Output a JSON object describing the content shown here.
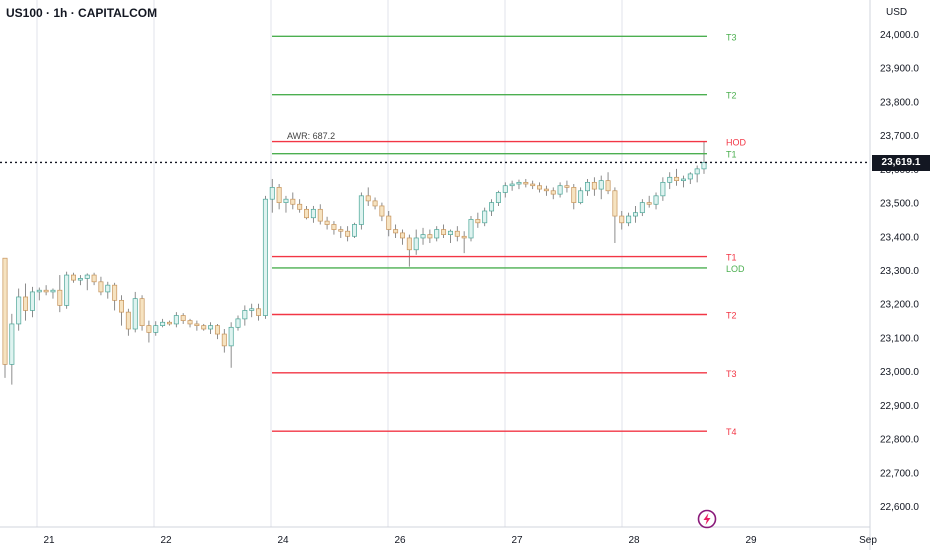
{
  "header": {
    "title": "US100 · 1h · CAPITALCOM",
    "currency": "USD"
  },
  "price_badge": "23,619.1",
  "chart_data": {
    "type": "candlestick",
    "symbol": "US100",
    "interval": "1h",
    "exchange": "CAPITALCOM",
    "currency": "USD",
    "ylim": [
      22520,
      24120
    ],
    "y_ticks": [
      "24,000.0",
      "23,900.0",
      "23,800.0",
      "23,700.0",
      "23,600.0",
      "23,500.0",
      "23,400.0",
      "23,300.0",
      "23,200.0",
      "23,100.0",
      "23,000.0",
      "22,900.0",
      "22,800.0",
      "22,700.0",
      "22,600.0"
    ],
    "y_tick_values": [
      24000,
      23900,
      23800,
      23700,
      23600,
      23500,
      23400,
      23300,
      23200,
      23100,
      23000,
      22900,
      22800,
      22700,
      22600
    ],
    "x_ticks": [
      "21",
      "22",
      "24",
      "26",
      "27",
      "28",
      "29",
      "Sep"
    ],
    "x_tick_positions": [
      3,
      12,
      21,
      30,
      39,
      48,
      57,
      66
    ],
    "x_range": [
      0,
      66
    ],
    "vertical_grid_positions": [
      3,
      12,
      21,
      30,
      39,
      48
    ],
    "last_price": 23619.1,
    "annotation": "AWR: 687.2",
    "levels": [
      {
        "label": "T3",
        "value": 23993,
        "color": "#4caf50"
      },
      {
        "label": "T2",
        "value": 23820,
        "color": "#4caf50"
      },
      {
        "label": "HOD",
        "value": 23681,
        "color": "#f23645"
      },
      {
        "label": "T1",
        "value": 23645,
        "color": "#4caf50"
      },
      {
        "label": "T1",
        "value": 23340,
        "color": "#f23645"
      },
      {
        "label": "LOD",
        "value": 23306,
        "color": "#4caf50"
      },
      {
        "label": "T2",
        "value": 23168,
        "color": "#f23645"
      },
      {
        "label": "T3",
        "value": 22995,
        "color": "#f23645"
      },
      {
        "label": "T4",
        "value": 22822,
        "color": "#f23645"
      }
    ],
    "levels_x_range": [
      21,
      54.3
    ],
    "candles": [
      [
        23335,
        23335,
        22980,
        23020
      ],
      [
        23020,
        23170,
        22960,
        23140
      ],
      [
        23140,
        23245,
        23120,
        23220
      ],
      [
        23220,
        23260,
        23150,
        23180
      ],
      [
        23180,
        23250,
        23160,
        23235
      ],
      [
        23235,
        23248,
        23210,
        23240
      ],
      [
        23240,
        23255,
        23225,
        23235
      ],
      [
        23235,
        23245,
        23215,
        23240
      ],
      [
        23240,
        23285,
        23175,
        23195
      ],
      [
        23195,
        23295,
        23185,
        23285
      ],
      [
        23285,
        23292,
        23262,
        23270
      ],
      [
        23270,
        23285,
        23255,
        23275
      ],
      [
        23275,
        23290,
        23240,
        23285
      ],
      [
        23285,
        23292,
        23255,
        23265
      ],
      [
        23265,
        23280,
        23225,
        23235
      ],
      [
        23235,
        23265,
        23215,
        23255
      ],
      [
        23255,
        23262,
        23180,
        23210
      ],
      [
        23210,
        23225,
        23135,
        23175
      ],
      [
        23175,
        23185,
        23105,
        23125
      ],
      [
        23125,
        23235,
        23115,
        23215
      ],
      [
        23215,
        23225,
        23120,
        23135
      ],
      [
        23135,
        23150,
        23085,
        23115
      ],
      [
        23115,
        23148,
        23105,
        23135
      ],
      [
        23135,
        23155,
        23130,
        23145
      ],
      [
        23145,
        23150,
        23135,
        23140
      ],
      [
        23140,
        23175,
        23130,
        23165
      ],
      [
        23165,
        23172,
        23140,
        23150
      ],
      [
        23150,
        23155,
        23130,
        23140
      ],
      [
        23140,
        23150,
        23120,
        23135
      ],
      [
        23135,
        23140,
        23120,
        23125
      ],
      [
        23125,
        23145,
        23110,
        23135
      ],
      [
        23135,
        23140,
        23095,
        23110
      ],
      [
        23110,
        23125,
        23055,
        23075
      ],
      [
        23075,
        23145,
        23010,
        23130
      ],
      [
        23130,
        23165,
        23120,
        23155
      ],
      [
        23155,
        23195,
        23135,
        23180
      ],
      [
        23180,
        23200,
        23160,
        23185
      ],
      [
        23185,
        23200,
        23150,
        23165
      ],
      [
        23165,
        23520,
        23155,
        23510
      ],
      [
        23510,
        23570,
        23470,
        23545
      ],
      [
        23545,
        23555,
        23480,
        23500
      ],
      [
        23500,
        23520,
        23470,
        23510
      ],
      [
        23510,
        23530,
        23480,
        23495
      ],
      [
        23495,
        23510,
        23470,
        23480
      ],
      [
        23480,
        23490,
        23450,
        23455
      ],
      [
        23455,
        23490,
        23440,
        23480
      ],
      [
        23480,
        23495,
        23435,
        23445
      ],
      [
        23445,
        23458,
        23420,
        23435
      ],
      [
        23435,
        23445,
        23405,
        23420
      ],
      [
        23420,
        23430,
        23395,
        23415
      ],
      [
        23415,
        23430,
        23385,
        23400
      ],
      [
        23400,
        23440,
        23395,
        23435
      ],
      [
        23435,
        23530,
        23420,
        23520
      ],
      [
        23520,
        23545,
        23490,
        23505
      ],
      [
        23505,
        23515,
        23480,
        23490
      ],
      [
        23490,
        23500,
        23445,
        23460
      ],
      [
        23460,
        23475,
        23400,
        23420
      ],
      [
        23420,
        23435,
        23395,
        23410
      ],
      [
        23410,
        23420,
        23375,
        23395
      ],
      [
        23395,
        23405,
        23310,
        23360
      ],
      [
        23360,
        23420,
        23345,
        23395
      ],
      [
        23395,
        23425,
        23375,
        23405
      ],
      [
        23405,
        23420,
        23380,
        23395
      ],
      [
        23395,
        23430,
        23385,
        23420
      ],
      [
        23420,
        23435,
        23395,
        23405
      ],
      [
        23405,
        23420,
        23380,
        23415
      ],
      [
        23415,
        23430,
        23385,
        23400
      ],
      [
        23400,
        23415,
        23350,
        23395
      ],
      [
        23395,
        23460,
        23385,
        23450
      ],
      [
        23450,
        23470,
        23425,
        23440
      ],
      [
        23440,
        23485,
        23430,
        23475
      ],
      [
        23475,
        23510,
        23460,
        23500
      ],
      [
        23500,
        23535,
        23490,
        23530
      ],
      [
        23530,
        23560,
        23515,
        23550
      ],
      [
        23550,
        23565,
        23535,
        23555
      ],
      [
        23555,
        23568,
        23540,
        23560
      ],
      [
        23560,
        23570,
        23545,
        23555
      ],
      [
        23555,
        23565,
        23540,
        23550
      ],
      [
        23550,
        23560,
        23530,
        23540
      ],
      [
        23540,
        23550,
        23520,
        23535
      ],
      [
        23535,
        23545,
        23510,
        23525
      ],
      [
        23525,
        23560,
        23515,
        23550
      ],
      [
        23550,
        23565,
        23530,
        23545
      ],
      [
        23545,
        23555,
        23480,
        23500
      ],
      [
        23500,
        23545,
        23495,
        23535
      ],
      [
        23535,
        23570,
        23520,
        23560
      ],
      [
        23560,
        23575,
        23520,
        23540
      ],
      [
        23540,
        23580,
        23510,
        23565
      ],
      [
        23565,
        23590,
        23525,
        23535
      ],
      [
        23535,
        23545,
        23380,
        23460
      ],
      [
        23460,
        23475,
        23420,
        23440
      ],
      [
        23440,
        23470,
        23430,
        23460
      ],
      [
        23460,
        23490,
        23440,
        23470
      ],
      [
        23470,
        23510,
        23460,
        23500
      ],
      [
        23500,
        23520,
        23485,
        23495
      ],
      [
        23495,
        23530,
        23480,
        23520
      ],
      [
        23520,
        23575,
        23505,
        23560
      ],
      [
        23560,
        23590,
        23540,
        23575
      ],
      [
        23575,
        23600,
        23550,
        23565
      ],
      [
        23565,
        23580,
        23545,
        23570
      ],
      [
        23570,
        23590,
        23555,
        23585
      ],
      [
        23585,
        23610,
        23560,
        23600
      ],
      [
        23600,
        23681,
        23585,
        23619
      ]
    ]
  }
}
